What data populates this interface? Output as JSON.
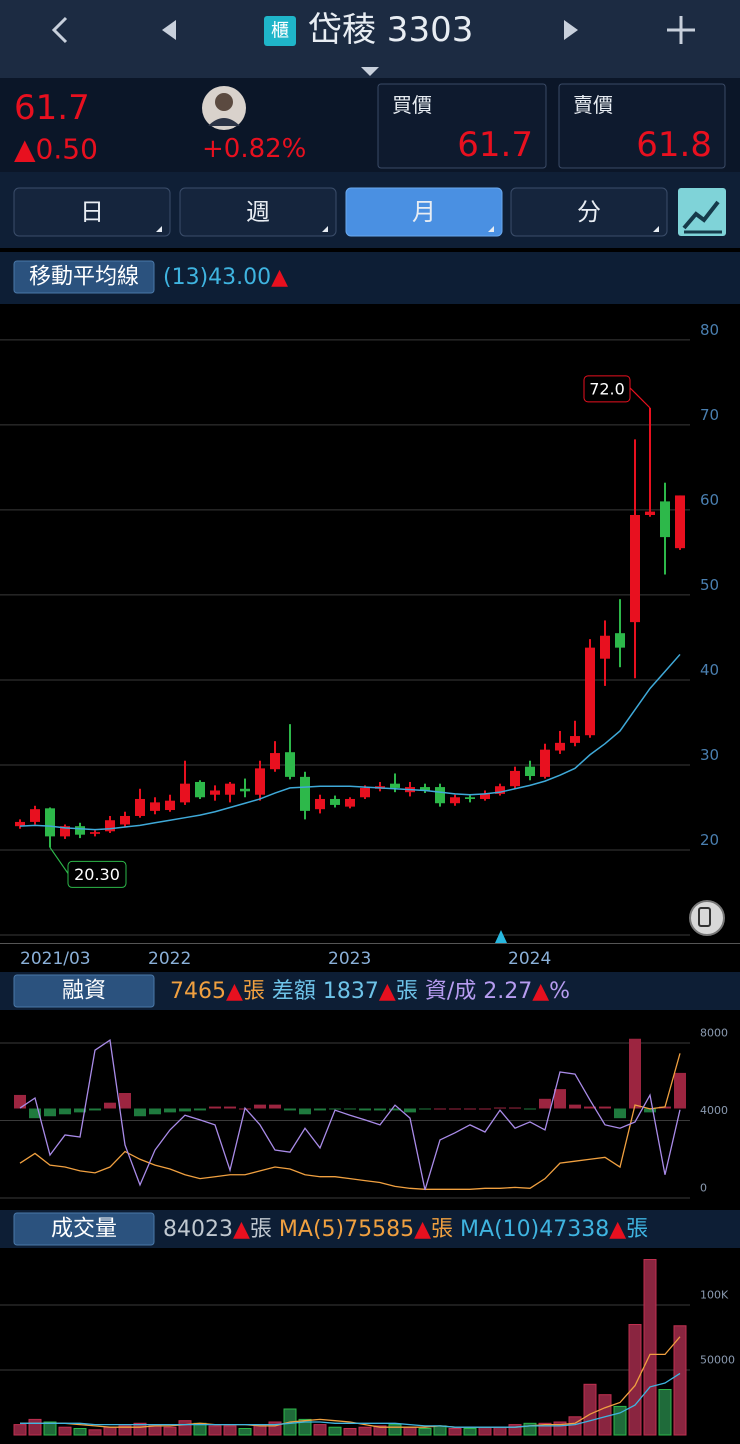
{
  "header": {
    "badge": "櫃",
    "title": "岱稜 3303"
  },
  "quote": {
    "price": "61.7",
    "change": "▲0.50",
    "change_pct": "+0.82%",
    "bid_label": "買價",
    "bid": "61.7",
    "ask_label": "賣價",
    "ask": "61.8"
  },
  "tabs": [
    "日",
    "週",
    "月",
    "分"
  ],
  "active_tab": 2,
  "chart_data": [
    {
      "type": "candlestick",
      "legend_label": "移動平均線",
      "legend": [
        {
          "text": "(13)43.00",
          "color": "#3fb4e0"
        },
        {
          "text": "▲",
          "color": "#e8101f"
        }
      ],
      "categories": [
        "2021/03",
        null,
        null,
        null,
        null,
        null,
        null,
        null,
        null,
        null,
        "2022",
        null,
        null,
        null,
        null,
        null,
        null,
        null,
        null,
        null,
        null,
        null,
        "2023",
        null,
        null,
        null,
        null,
        null,
        null,
        null,
        null,
        null,
        null,
        null,
        "2024",
        null,
        null,
        null,
        null,
        null,
        null,
        null,
        null,
        null,
        null
      ],
      "open": [
        22.8,
        23.3,
        24.9,
        21.6,
        22.8,
        21.9,
        22.2,
        23.0,
        24.0,
        24.6,
        24.7,
        25.6,
        28.0,
        26.5,
        26.5,
        27.2,
        26.5,
        29.5,
        31.5,
        28.6,
        24.8,
        26.0,
        25.1,
        26.2,
        27.2,
        27.8,
        26.8,
        27.4,
        27.4,
        25.5,
        26.2,
        26.0,
        26.6,
        27.5,
        29.8,
        28.6,
        31.7,
        32.6,
        33.5,
        42.5,
        45.5,
        46.8,
        59.4,
        61.0,
        55.5
      ],
      "high": [
        23.6,
        25.2,
        25.0,
        23.0,
        23.2,
        22.3,
        24.0,
        24.5,
        27.2,
        26.2,
        26.5,
        30.5,
        28.2,
        27.6,
        28.0,
        28.4,
        30.5,
        32.8,
        34.8,
        29.2,
        26.5,
        26.4,
        26.2,
        27.6,
        28.0,
        29.0,
        28.0,
        27.8,
        27.8,
        26.5,
        26.4,
        27.0,
        27.8,
        29.8,
        30.5,
        32.5,
        34.0,
        35.2,
        44.8,
        47.0,
        49.5,
        68.3,
        72.0,
        63.2,
        61.7
      ],
      "low": [
        22.5,
        23.0,
        20.3,
        21.3,
        21.4,
        21.6,
        22.0,
        22.7,
        23.8,
        24.2,
        24.5,
        25.3,
        26.0,
        25.8,
        25.6,
        26.2,
        25.8,
        29.2,
        28.3,
        23.6,
        24.3,
        25.0,
        24.9,
        26.0,
        26.9,
        26.8,
        26.3,
        26.7,
        25.1,
        25.2,
        25.6,
        25.8,
        26.4,
        27.2,
        28.2,
        28.4,
        31.3,
        32.2,
        33.2,
        39.3,
        41.5,
        40.2,
        59.2,
        52.4,
        55.3
      ],
      "close": [
        23.3,
        24.8,
        21.6,
        22.8,
        21.8,
        22.1,
        23.5,
        24.0,
        26.0,
        25.6,
        25.8,
        27.8,
        26.2,
        27.0,
        27.8,
        26.9,
        29.6,
        31.4,
        28.6,
        24.6,
        26.0,
        25.3,
        26.0,
        27.3,
        27.5,
        27.3,
        27.4,
        27.0,
        25.5,
        26.2,
        26.0,
        26.6,
        27.5,
        29.3,
        28.7,
        31.8,
        32.6,
        33.4,
        43.8,
        45.2,
        43.8,
        59.4,
        59.8,
        56.8,
        61.7
      ],
      "up_color": "#e8101f",
      "down_color": "#2db84a",
      "ma": {
        "color": "#3fa9d8",
        "values": [
          22.8,
          22.9,
          22.8,
          22.6,
          22.5,
          22.4,
          22.5,
          22.7,
          22.9,
          23.2,
          23.5,
          23.8,
          24.1,
          24.5,
          25.0,
          25.5,
          26.0,
          26.7,
          27.3,
          27.4,
          27.5,
          27.5,
          27.5,
          27.4,
          27.3,
          27.2,
          27.1,
          27.0,
          26.8,
          26.6,
          26.5,
          26.6,
          26.8,
          27.2,
          27.6,
          28.1,
          28.8,
          29.6,
          31.2,
          32.5,
          34.0,
          36.5,
          39.0,
          41.0,
          43.0
        ]
      },
      "annotations": [
        {
          "index": 42,
          "value": 72.0,
          "label": "72.0",
          "color": "#e8101f"
        },
        {
          "index": 2,
          "value": 20.3,
          "label": "20.30",
          "color": "#2db84a"
        }
      ],
      "ylim": [
        9.06,
        84.1
      ],
      "yticks": [
        10,
        20,
        30,
        40,
        50,
        60,
        70,
        80
      ],
      "grid": true
    },
    {
      "type": "margin",
      "legend_label": "融資",
      "legend": [
        {
          "text": "7465",
          "color": "#f0a040"
        },
        {
          "text": "▲",
          "color": "#e8101f"
        },
        {
          "text": "張",
          "color": "#f0a040"
        },
        {
          "text": " 差額 1837",
          "color": "#6ec3e8"
        },
        {
          "text": "▲",
          "color": "#e8101f"
        },
        {
          "text": "張",
          "color": "#6ec3e8"
        },
        {
          "text": " 資/成 2.27",
          "color": "#b69cf0"
        },
        {
          "text": "▲",
          "color": "#e8101f"
        },
        {
          "text": "%",
          "color": "#b69cf0"
        }
      ],
      "bars": {
        "up_color": "#9c2540",
        "down_color": "#1f7a3e",
        "values": [
          700,
          -500,
          -400,
          -300,
          -200,
          -100,
          300,
          800,
          -400,
          -300,
          -200,
          -150,
          -100,
          100,
          100,
          0,
          200,
          200,
          -100,
          -300,
          -100,
          -50,
          -50,
          -100,
          -100,
          -100,
          -200,
          -50,
          0,
          0,
          0,
          0,
          50,
          50,
          -50,
          500,
          1000,
          200,
          100,
          100,
          -500,
          3600,
          -200,
          100,
          1837
        ]
      },
      "series": [
        {
          "color": "#f0a040",
          "values": [
            1800,
            2300,
            1700,
            1600,
            1400,
            1300,
            1600,
            2400,
            2000,
            1700,
            1500,
            1200,
            1000,
            1100,
            1200,
            1200,
            1400,
            1600,
            1500,
            1200,
            1100,
            1100,
            1000,
            900,
            800,
            600,
            500,
            450,
            450,
            450,
            450,
            500,
            500,
            550,
            500,
            1000,
            1800,
            1900,
            2000,
            2100,
            1600,
            4800,
            4600,
            4700,
            7465
          ]
        },
        {
          "color": "#a98be8",
          "axis": "y2",
          "values": [
            2.31,
            2.55,
            1.19,
            1.67,
            1.62,
            3.69,
            3.93,
            1.43,
            0.48,
            1.31,
            1.79,
            2.14,
            2.03,
            1.91,
            0.83,
            2.31,
            1.91,
            1.31,
            1.26,
            1.83,
            1.36,
            2.26,
            2.14,
            2.03,
            1.91,
            2.38,
            2.07,
            0.36,
            1.55,
            1.72,
            1.91,
            1.74,
            2.26,
            1.83,
            1.98,
            1.79,
            3.17,
            3.12,
            2.5,
            1.91,
            1.83,
            1.98,
            2.62,
            0.72,
            2.27
          ]
        }
      ],
      "ylim": [
        -360,
        9600
      ],
      "yticks": [
        0,
        4000,
        8000
      ],
      "y2lim": [
        0,
        4.6
      ],
      "grid": true
    },
    {
      "type": "volume",
      "legend_label": "成交量",
      "legend": [
        {
          "text": "84023",
          "color": "#c0c8d0"
        },
        {
          "text": "▲",
          "color": "#e8101f"
        },
        {
          "text": "張",
          "color": "#c0c8d0"
        },
        {
          "text": " MA(5)75585",
          "color": "#f0a040"
        },
        {
          "text": "▲",
          "color": "#e8101f"
        },
        {
          "text": "張",
          "color": "#f0a040"
        },
        {
          "text": " MA(10)47338",
          "color": "#3fb4e0"
        },
        {
          "text": "▲",
          "color": "#e8101f"
        },
        {
          "text": "張",
          "color": "#3fb4e0"
        }
      ],
      "values": [
        8000,
        12000,
        10000,
        6000,
        5000,
        4000,
        6000,
        7000,
        9000,
        8000,
        6000,
        11000,
        9000,
        7000,
        7000,
        5000,
        8000,
        10000,
        20000,
        12000,
        8000,
        6000,
        5000,
        6000,
        7000,
        8000,
        6000,
        5000,
        7000,
        5000,
        5000,
        6000,
        6000,
        8000,
        9000,
        9000,
        10000,
        14000,
        39000,
        31000,
        22000,
        85000,
        135000,
        35000,
        84023
      ],
      "up_color": "#8a2540",
      "down_color": "#1f6b3a",
      "series": [
        {
          "color": "#f0a040",
          "values": [
            9000,
            9000,
            9000,
            9000,
            8000,
            7000,
            6000,
            6000,
            6000,
            7000,
            7000,
            8000,
            9000,
            8000,
            8000,
            8000,
            7000,
            7000,
            10000,
            11000,
            12000,
            11000,
            10000,
            8000,
            6000,
            6000,
            6000,
            6000,
            7000,
            6000,
            6000,
            6000,
            6000,
            6000,
            7000,
            8000,
            8000,
            9000,
            16000,
            21000,
            25000,
            38000,
            62000,
            62000,
            75585
          ]
        },
        {
          "color": "#3fb4e0",
          "values": [
            9000,
            9000,
            9000,
            9000,
            9000,
            8000,
            8000,
            8000,
            8000,
            8000,
            8000,
            8000,
            8000,
            8000,
            8000,
            8000,
            8000,
            8000,
            9000,
            10000,
            10000,
            9000,
            9000,
            9000,
            9000,
            9000,
            8000,
            7000,
            7000,
            6000,
            6000,
            6000,
            6000,
            6000,
            7000,
            7000,
            7000,
            8000,
            11000,
            14000,
            17000,
            23000,
            37000,
            40000,
            47338
          ]
        }
      ],
      "ylim": [
        0,
        140000
      ],
      "yticks": [
        50000,
        {
          "value": 100000,
          "label": "100K"
        }
      ],
      "grid": true
    }
  ]
}
